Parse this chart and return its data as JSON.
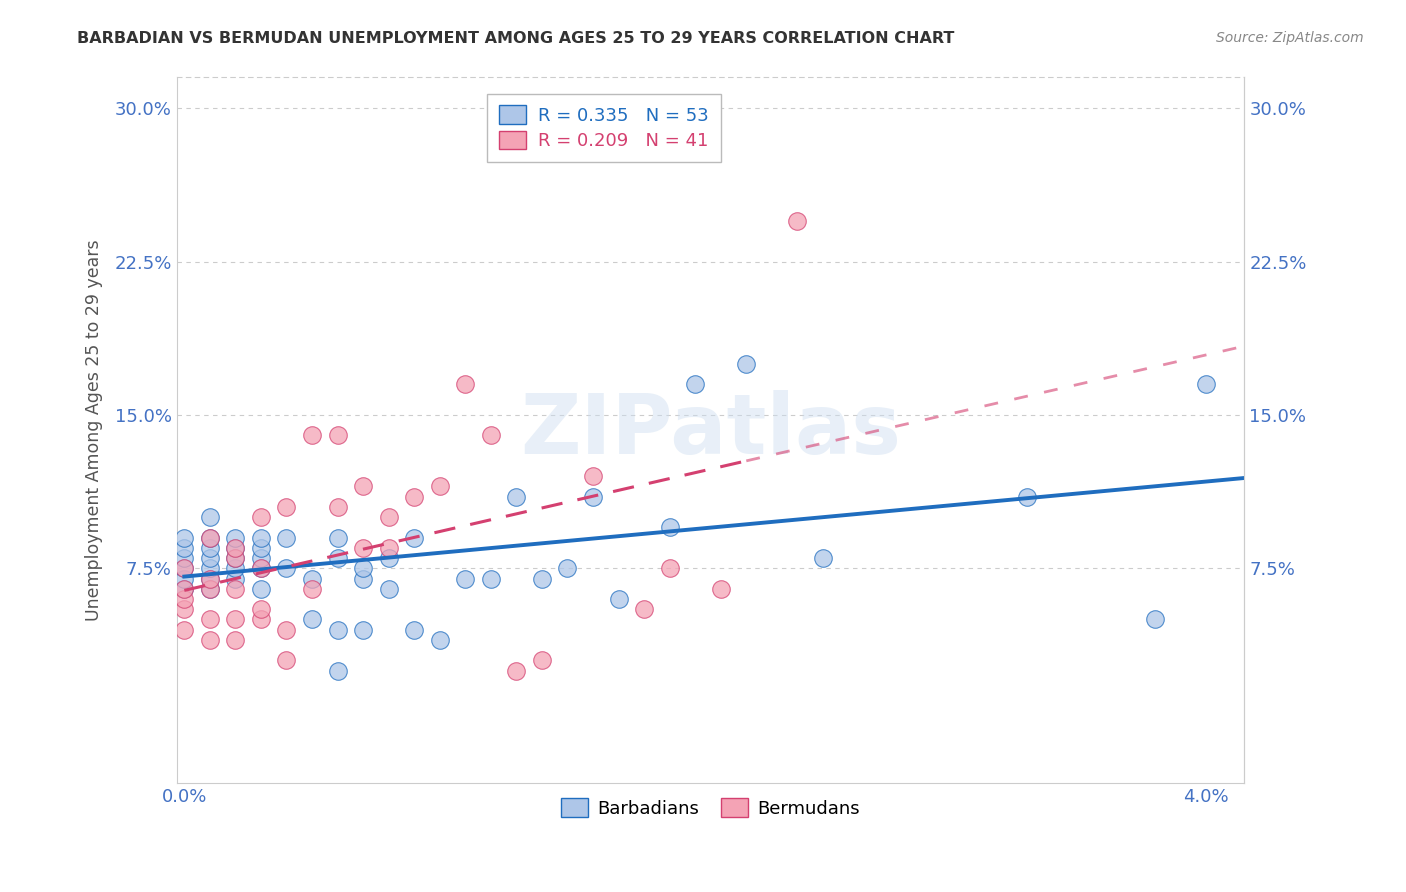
{
  "title": "BARBADIAN VS BERMUDAN UNEMPLOYMENT AMONG AGES 25 TO 29 YEARS CORRELATION CHART",
  "source": "Source: ZipAtlas.com",
  "ylabel": "Unemployment Among Ages 25 to 29 years",
  "y_tick_labels": [
    "7.5%",
    "15.0%",
    "22.5%",
    "30.0%"
  ],
  "y_ticks": [
    0.075,
    0.15,
    0.225,
    0.3
  ],
  "x_min": -0.0003,
  "x_max": 0.0415,
  "y_min": -0.03,
  "y_max": 0.315,
  "barbadian_color": "#aec6e8",
  "bermuda_color": "#f4a3b5",
  "barbadian_line_color": "#1f6dbf",
  "bermuda_line_color": "#d44070",
  "watermark": "ZIPatlas",
  "barbadian_x": [
    0.0,
    0.0,
    0.0,
    0.0,
    0.0,
    0.0,
    0.001,
    0.001,
    0.001,
    0.001,
    0.001,
    0.001,
    0.001,
    0.002,
    0.002,
    0.002,
    0.002,
    0.002,
    0.003,
    0.003,
    0.003,
    0.003,
    0.003,
    0.004,
    0.004,
    0.005,
    0.005,
    0.006,
    0.006,
    0.006,
    0.006,
    0.007,
    0.007,
    0.007,
    0.008,
    0.008,
    0.009,
    0.009,
    0.01,
    0.011,
    0.012,
    0.013,
    0.014,
    0.015,
    0.016,
    0.017,
    0.019,
    0.02,
    0.022,
    0.025,
    0.033,
    0.038,
    0.04
  ],
  "barbadian_y": [
    0.065,
    0.07,
    0.075,
    0.08,
    0.085,
    0.09,
    0.065,
    0.07,
    0.075,
    0.08,
    0.085,
    0.09,
    0.1,
    0.07,
    0.075,
    0.08,
    0.085,
    0.09,
    0.065,
    0.075,
    0.08,
    0.085,
    0.09,
    0.075,
    0.09,
    0.05,
    0.07,
    0.025,
    0.045,
    0.08,
    0.09,
    0.045,
    0.07,
    0.075,
    0.065,
    0.08,
    0.045,
    0.09,
    0.04,
    0.07,
    0.07,
    0.11,
    0.07,
    0.075,
    0.11,
    0.06,
    0.095,
    0.165,
    0.175,
    0.08,
    0.11,
    0.05,
    0.165
  ],
  "bermuda_x": [
    0.0,
    0.0,
    0.0,
    0.0,
    0.0,
    0.001,
    0.001,
    0.001,
    0.001,
    0.001,
    0.002,
    0.002,
    0.002,
    0.002,
    0.002,
    0.003,
    0.003,
    0.003,
    0.003,
    0.004,
    0.004,
    0.004,
    0.005,
    0.005,
    0.006,
    0.006,
    0.007,
    0.007,
    0.008,
    0.008,
    0.009,
    0.01,
    0.011,
    0.012,
    0.013,
    0.014,
    0.016,
    0.018,
    0.019,
    0.021,
    0.024
  ],
  "bermuda_y": [
    0.045,
    0.055,
    0.06,
    0.065,
    0.075,
    0.04,
    0.05,
    0.065,
    0.07,
    0.09,
    0.04,
    0.05,
    0.065,
    0.08,
    0.085,
    0.05,
    0.055,
    0.075,
    0.1,
    0.03,
    0.045,
    0.105,
    0.065,
    0.14,
    0.105,
    0.14,
    0.085,
    0.115,
    0.085,
    0.1,
    0.11,
    0.115,
    0.165,
    0.14,
    0.025,
    0.03,
    0.12,
    0.055,
    0.075,
    0.065,
    0.245
  ]
}
